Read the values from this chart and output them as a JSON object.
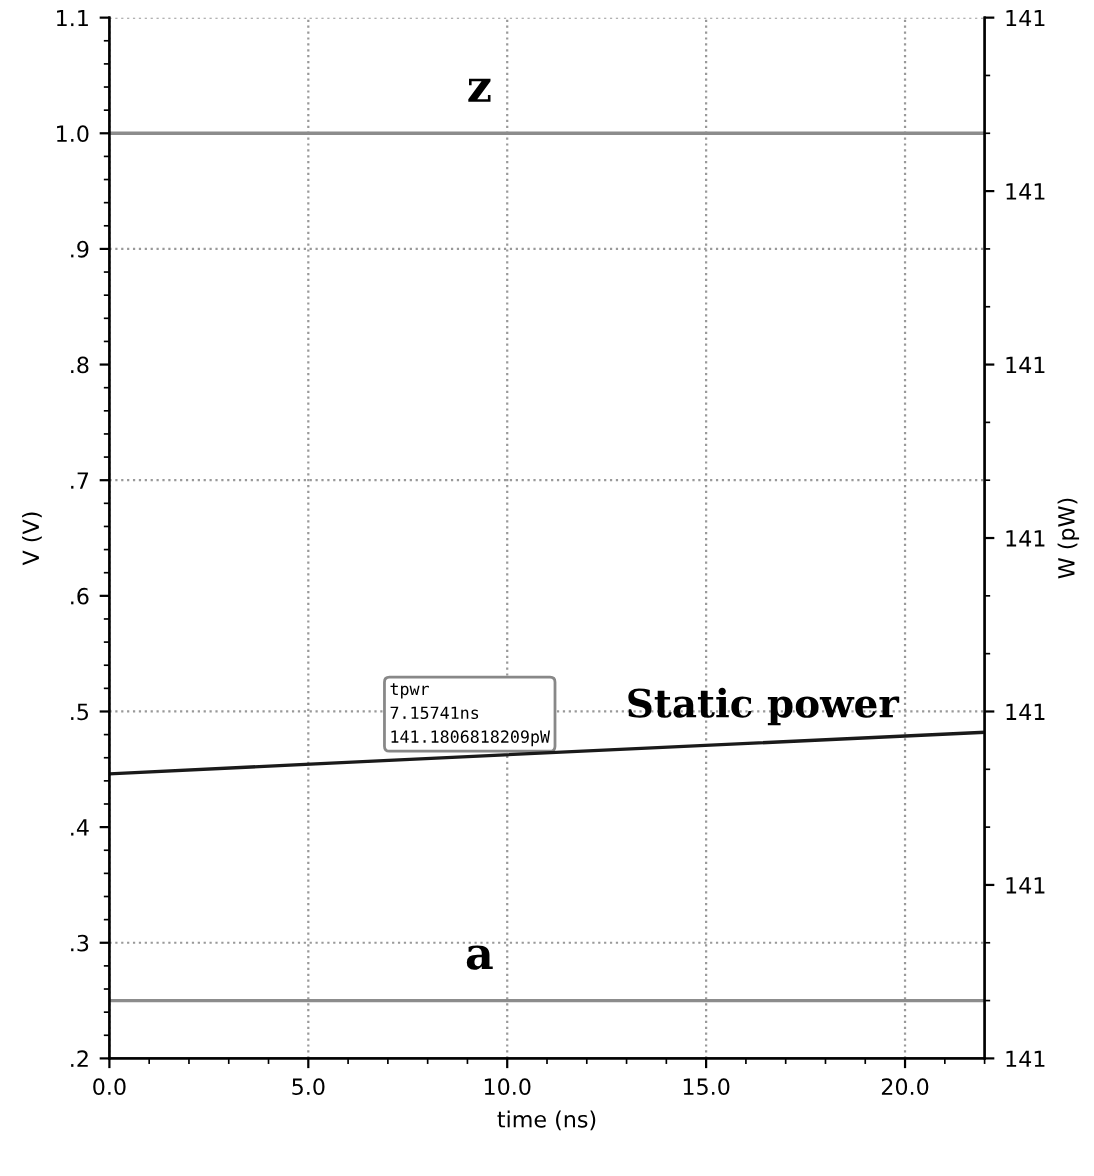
{
  "chart_data": {
    "type": "line",
    "xlabel": "time (ns)",
    "ylabel": "V (V)",
    "y2label": "W (pW)",
    "xlim": [
      0,
      22
    ],
    "xticks": [
      {
        "value": 0,
        "label": "0.0"
      },
      {
        "value": 5,
        "label": "5.0"
      },
      {
        "value": 10,
        "label": "10.0"
      },
      {
        "value": 15,
        "label": "15.0"
      },
      {
        "value": 20,
        "label": "20.0"
      }
    ],
    "ylim": [
      0.2,
      1.1
    ],
    "yticks": [
      {
        "value": 0.2,
        "label": ".2"
      },
      {
        "value": 0.3,
        "label": ".3"
      },
      {
        "value": 0.4,
        "label": ".4"
      },
      {
        "value": 0.5,
        "label": ".5"
      },
      {
        "value": 0.6,
        "label": ".6"
      },
      {
        "value": 0.7,
        "label": ".7"
      },
      {
        "value": 0.8,
        "label": ".8"
      },
      {
        "value": 0.9,
        "label": ".9"
      },
      {
        "value": 1.0,
        "label": "1.0"
      },
      {
        "value": 1.1,
        "label": "1.1"
      }
    ],
    "y2lim": [
      141.1635,
      141.2235
    ],
    "y2ticks": [
      {
        "value": 141.1635,
        "label": "141"
      },
      {
        "value": 141.1735,
        "label": "141"
      },
      {
        "value": 141.1835,
        "label": "141"
      },
      {
        "value": 141.1935,
        "label": "141"
      },
      {
        "value": 141.2035,
        "label": "141"
      },
      {
        "value": 141.2135,
        "label": "141"
      },
      {
        "value": 141.2235,
        "label": "141"
      }
    ],
    "series": [
      {
        "color": "#8c8c8c",
        "x": [
          0,
          22
        ],
        "values": [
          1.0,
          1.0
        ]
      },
      {
        "color": "#8c8c8c",
        "x": [
          0,
          22
        ],
        "values": [
          0.25,
          0.25
        ]
      },
      {
        "color": "#1a1a1a",
        "axis": "y2",
        "x": [
          0,
          7.15741,
          22
        ],
        "values": [
          141.1799,
          141.1807,
          141.1823
        ]
      }
    ],
    "annotations": [
      {
        "text": "z",
        "x": 9.3,
        "y": 1.0
      },
      {
        "text": "a",
        "x": 9.3,
        "y": 0.25
      },
      "Static power",
      "tpwr\n7.15741ns\n141.1806818209pW"
    ],
    "grid": true,
    "line_style": "solid",
    "marker": "none"
  }
}
